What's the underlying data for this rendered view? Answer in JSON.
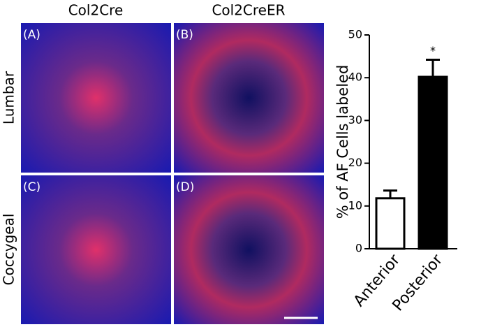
{
  "panels": {
    "columns": [
      "Col2Cre",
      "Col2CreER"
    ],
    "rows": [
      "Lumbar",
      "Coccygeal"
    ],
    "labels": [
      "(A)",
      "(B)",
      "(C)",
      "(D)"
    ]
  },
  "chart_data": {
    "type": "bar",
    "ylabel": "% of AF Cells labeled",
    "categories": [
      "Anterior",
      "Posterior"
    ],
    "values": [
      11.8,
      40.2
    ],
    "errors": [
      1.8,
      4.0
    ],
    "colors": [
      "#ffffff",
      "#000000"
    ],
    "annotation": "*",
    "ylim": [
      0,
      50
    ],
    "yticks": [
      0,
      10,
      20,
      30,
      40,
      50
    ],
    "grid": false
  }
}
